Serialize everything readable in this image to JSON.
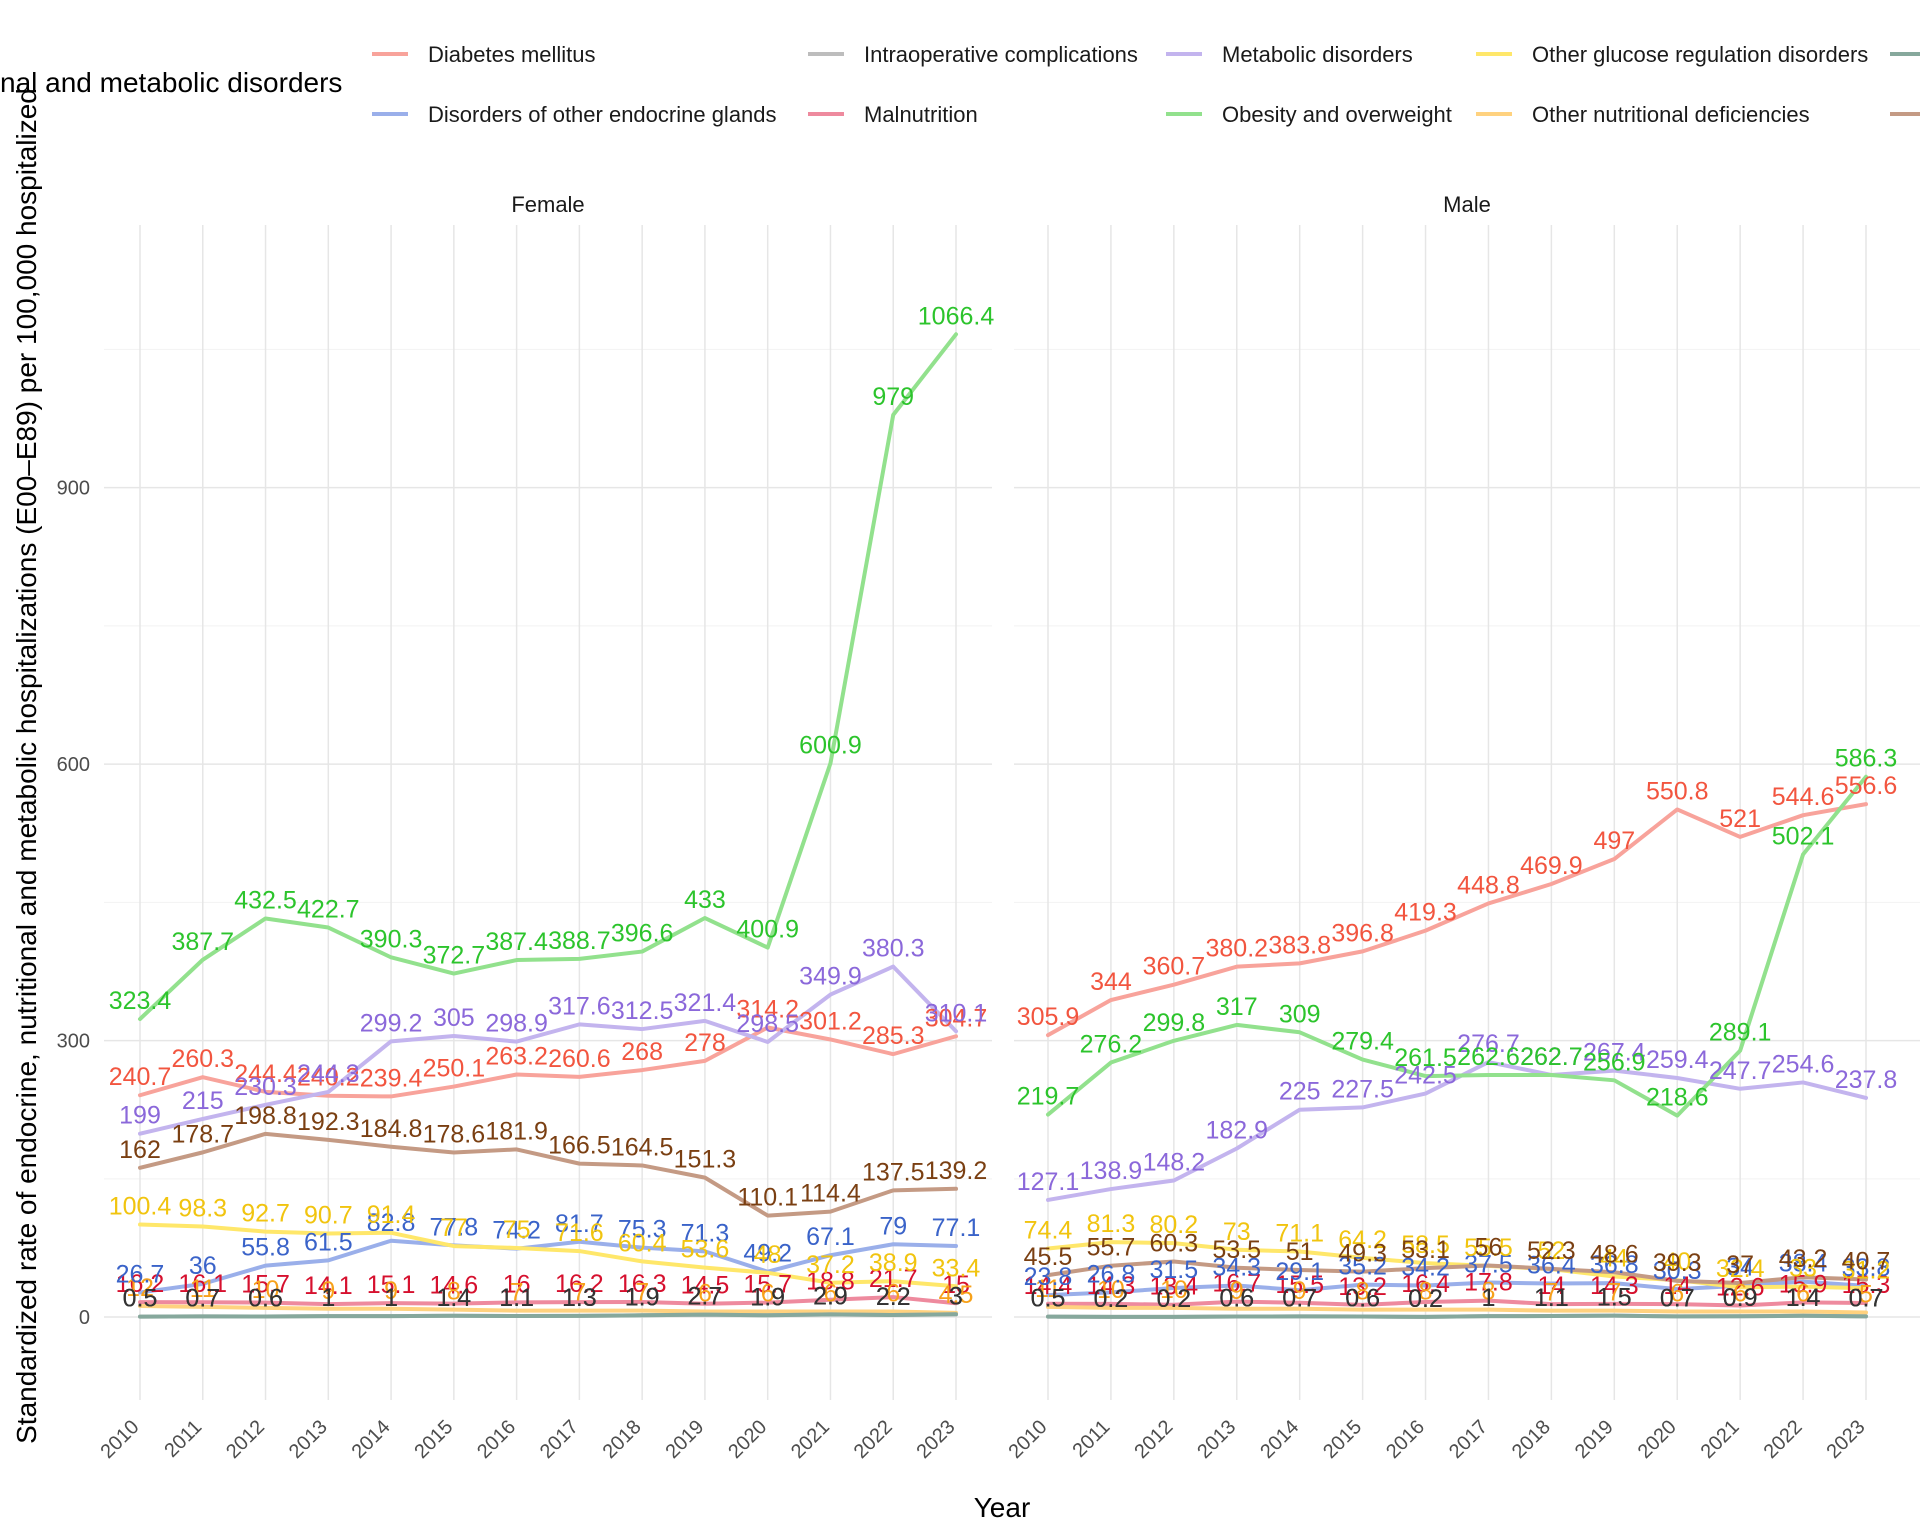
{
  "chart_data": {
    "type": "line",
    "legend_title": "nal and metabolic disorders",
    "xlabel": "Year",
    "ylabel": "Standardized rate of endocrine, nutritional and metabolic hospitalizations (E00–E89) per 100,000 hospitalized",
    "ylim": [
      -90,
      1185
    ],
    "yticks": [
      0,
      300,
      600,
      900
    ],
    "grid": true,
    "legend_position": "top",
    "x": [
      2010,
      2011,
      2012,
      2013,
      2014,
      2015,
      2016,
      2017,
      2018,
      2019,
      2020,
      2021,
      2022,
      2023
    ],
    "legend": [
      {
        "name": "Diabetes mellitus",
        "color": "#F8A39B"
      },
      {
        "name": "Intraoperative complications",
        "color": "#BDBDBD"
      },
      {
        "name": "Metabolic disorders",
        "color": "#C3B4EE"
      },
      {
        "name": "Other glucose regulation disorders",
        "color": "#FFE76A"
      },
      {
        "name": "",
        "color": "#86A89C"
      },
      {
        "name": "Disorders of other endocrine glands",
        "color": "#9AAFEA"
      },
      {
        "name": "Malnutrition",
        "color": "#EE8A9E"
      },
      {
        "name": "Obesity and overweight",
        "color": "#92E18D"
      },
      {
        "name": "Other nutritional deficiencies",
        "color": "#FFD27F"
      },
      {
        "name": "",
        "color": "#C49A84"
      }
    ],
    "panels": [
      {
        "name": "Female",
        "series": [
          {
            "key": "malnut",
            "color": "#EE8A9E",
            "label_color": "#D6102E",
            "values": [
              16.2,
              16.1,
              15.7,
              14.1,
              15.1,
              14.6,
              16,
              16.2,
              16.3,
              14.5,
              15.7,
              18.8,
              21.7,
              15
            ]
          },
          {
            "key": "nutdef",
            "color": "#FFD27F",
            "label_color": "#F7A11A",
            "values": [
              12,
              11,
              10,
              9,
              9,
              8,
              7,
              7,
              7,
              6,
              6,
              6,
              6,
              4.5
            ]
          },
          {
            "key": "intraop",
            "color": "#BDBDBD",
            "label_color": "#333333",
            "values": [
              0.5,
              0.7,
              0.6,
              1,
              1,
              1.4,
              1.1,
              1.3,
              1.9,
              2.7,
              1.9,
              2.9,
              2.2,
              3
            ]
          },
          {
            "key": "endoc",
            "color": "#9AAFEA",
            "label_color": "#3A63C9",
            "values": [
              26.7,
              36,
              55.8,
              61.5,
              82.8,
              77.8,
              74.2,
              81.7,
              75.3,
              71.3,
              49.2,
              67.1,
              79,
              77.1
            ]
          },
          {
            "key": "gluc",
            "color": "#FFE76A",
            "label_color": "#F1C40F",
            "values": [
              100.4,
              98.3,
              92.7,
              90.7,
              91.4,
              77,
              75,
              71.6,
              60.4,
              53.6,
              48,
              37.2,
              38.9,
              33.4
            ]
          },
          {
            "key": "other",
            "color": "#C49A84",
            "label_color": "#7A3F12",
            "values": [
              162,
              178.7,
              198.8,
              192.3,
              184.8,
              178.6,
              181.9,
              166.5,
              164.5,
              151.3,
              110.1,
              114.4,
              137.5,
              139.2
            ]
          },
          {
            "key": "diab",
            "color": "#F8A39B",
            "label_color": "#F2553F",
            "values": [
              240.7,
              260.3,
              244.4,
              240.2,
              239.4,
              250.1,
              263.2,
              260.6,
              268,
              278,
              314.2,
              301.2,
              285.3,
              304.7
            ]
          },
          {
            "key": "metab",
            "color": "#C3B4EE",
            "label_color": "#8B68DA",
            "values": [
              199,
              215,
              230.3,
              244.3,
              299.2,
              305,
              298.9,
              317.6,
              312.5,
              321.4,
              298.5,
              349.9,
              380.3,
              310.1
            ]
          },
          {
            "key": "obes",
            "color": "#92E18D",
            "label_color": "#2CC42C",
            "values": [
              323.4,
              387.7,
              432.5,
              422.7,
              390.3,
              372.7,
              387.4,
              388.7,
              396.6,
              433,
              400.9,
              600.9,
              979,
              1066.4
            ]
          },
          {
            "key": "unnamed2",
            "color": "#86A89C",
            "label_color": "#333333",
            "values": [
              0.5,
              0.7,
              0.6,
              1,
              1,
              1.4,
              1.1,
              1.3,
              1.9,
              2.7,
              1.9,
              2.9,
              2.2,
              3
            ]
          }
        ]
      },
      {
        "name": "Male",
        "series": [
          {
            "key": "malnut",
            "color": "#EE8A9E",
            "label_color": "#D6102E",
            "values": [
              14.4,
              14.3,
              13.4,
              16.7,
              15.5,
              13.2,
              16.4,
              17.8,
              14,
              14.3,
              14,
              12.6,
              15.9,
              15.3
            ]
          },
          {
            "key": "nutdef",
            "color": "#FFD27F",
            "label_color": "#F7A11A",
            "values": [
              11,
              10,
              10,
              9,
              9,
              8,
              8,
              8,
              7,
              7,
              6,
              6,
              6,
              5
            ]
          },
          {
            "key": "intraop",
            "color": "#BDBDBD",
            "label_color": "#333333",
            "values": [
              0.5,
              0.2,
              0.2,
              0.6,
              0.7,
              0.6,
              0.2,
              1,
              1.1,
              1.5,
              0.7,
              0.9,
              1.4,
              0.7
            ]
          },
          {
            "key": "endoc",
            "color": "#9AAFEA",
            "label_color": "#3A63C9",
            "values": [
              23.8,
              26.8,
              31.5,
              34.3,
              29.1,
              35.2,
              34.2,
              37.5,
              36.4,
              36.8,
              30.3,
              34,
              38.4,
              33.8
            ]
          },
          {
            "key": "gluc",
            "color": "#FFE76A",
            "label_color": "#F1C40F",
            "values": [
              74.4,
              81.3,
              80.2,
              73,
              71.1,
              64.2,
              58.5,
              55.5,
              52,
              44,
              40,
              32.4,
              33,
              31.2
            ]
          },
          {
            "key": "other",
            "color": "#C49A84",
            "label_color": "#7A3F12",
            "values": [
              45.5,
              55.7,
              60.3,
              53.5,
              51,
              49.3,
              53.1,
              56,
              52.3,
              48.6,
              39.3,
              37,
              43.2,
              40.7
            ]
          },
          {
            "key": "diab",
            "color": "#F8A39B",
            "label_color": "#F2553F",
            "values": [
              305.9,
              344,
              360.7,
              380.2,
              383.8,
              396.8,
              419.3,
              448.8,
              469.9,
              497,
              550.8,
              521,
              544.6,
              556.6
            ]
          },
          {
            "key": "metab",
            "color": "#C3B4EE",
            "label_color": "#8B68DA",
            "values": [
              127.1,
              138.9,
              148.2,
              182.9,
              225,
              227.5,
              242.5,
              276.7,
              262.7,
              267.4,
              259.4,
              247.7,
              254.6,
              237.8
            ]
          },
          {
            "key": "obes",
            "color": "#92E18D",
            "label_color": "#2CC42C",
            "values": [
              219.7,
              276.2,
              299.8,
              317,
              309,
              279.4,
              261.5,
              262.6,
              262.7,
              256.9,
              218.6,
              289.1,
              502.1,
              586.3
            ]
          },
          {
            "key": "unnamed2",
            "color": "#86A89C",
            "label_color": "#333333",
            "values": [
              0.5,
              0.2,
              0.2,
              0.6,
              0.7,
              0.6,
              0.2,
              1,
              1.1,
              1.5,
              0.7,
              0.9,
              1.4,
              0.7
            ]
          }
        ]
      }
    ]
  }
}
